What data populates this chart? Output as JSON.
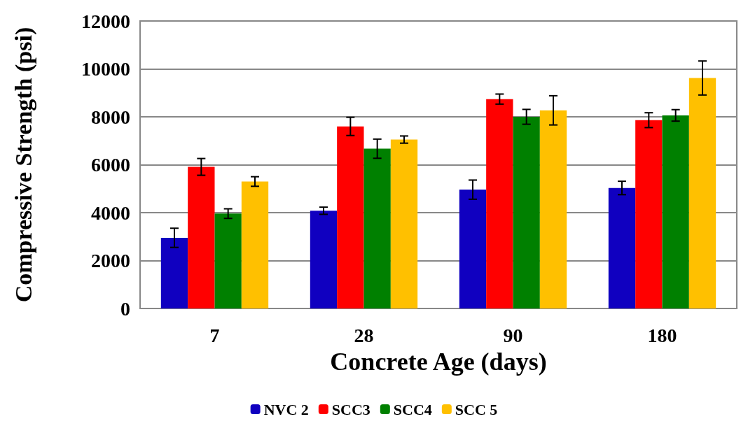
{
  "chart_data": {
    "type": "bar",
    "xlabel": "Concrete Age (days)",
    "ylabel": "Compressive Strength (psi)",
    "categories": [
      "7",
      "28",
      "90",
      "180"
    ],
    "series": [
      {
        "name": "NVC 2",
        "color": "#1000c0",
        "values": [
          2950,
          4080,
          4960,
          5030
        ],
        "errors": [
          400,
          150,
          400,
          280
        ]
      },
      {
        "name": "SCC3",
        "color": "#ff0000",
        "values": [
          5910,
          7600,
          8740,
          7860
        ],
        "errors": [
          350,
          380,
          210,
          310
        ]
      },
      {
        "name": "SCC4",
        "color": "#008000",
        "values": [
          3960,
          6670,
          8000,
          8060
        ],
        "errors": [
          200,
          400,
          310,
          240
        ]
      },
      {
        "name": "SCC 5",
        "color": "#ffc000",
        "values": [
          5300,
          7050,
          8270,
          9620
        ],
        "errors": [
          200,
          150,
          610,
          710
        ]
      }
    ],
    "ylim": [
      0,
      12000
    ],
    "yticks": [
      0,
      2000,
      4000,
      6000,
      8000,
      10000,
      12000
    ],
    "grid": "y",
    "legend": "bottom"
  }
}
